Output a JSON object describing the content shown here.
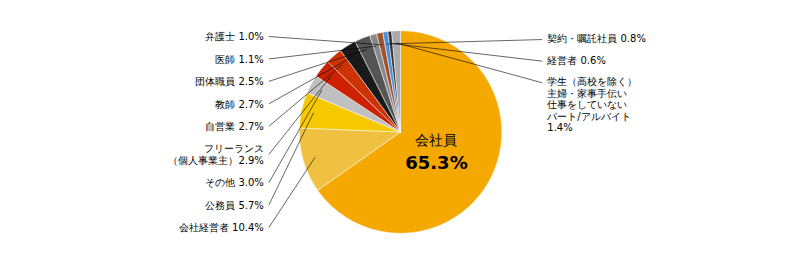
{
  "chart_data": {
    "type": "pie",
    "categories": [
      "会社員\n65.3%",
      "会社経営者 10.4%",
      "公務員 5.7%",
      "その他 3.0%",
      "フリーランス\n（個人事業主）2.9%",
      "自営業 2.7%",
      "教師 2.7%",
      "団体職員 2.5%",
      "医師 1.1%",
      "弁護士 1.0%",
      "契約・嘱託社員 0.8%",
      "経営者 0.6%",
      "学生（高校を除く）\n主婦・家事手伝い\n仕事をしていない\nパート/アルバイト\n1.4%"
    ],
    "values": [
      65.3,
      10.4,
      5.7,
      3.0,
      2.9,
      2.7,
      2.7,
      2.5,
      1.1,
      1.0,
      0.8,
      0.6,
      1.4
    ],
    "colors": [
      "#F5A800",
      "#F0C040",
      "#F5C800",
      "#C0C0C0",
      "#CC2200",
      "#CC3300",
      "#1A1A1A",
      "#555555",
      "#888888",
      "#A0522D",
      "#4A90D9",
      "#333333",
      "#AAAAAA"
    ]
  }
}
